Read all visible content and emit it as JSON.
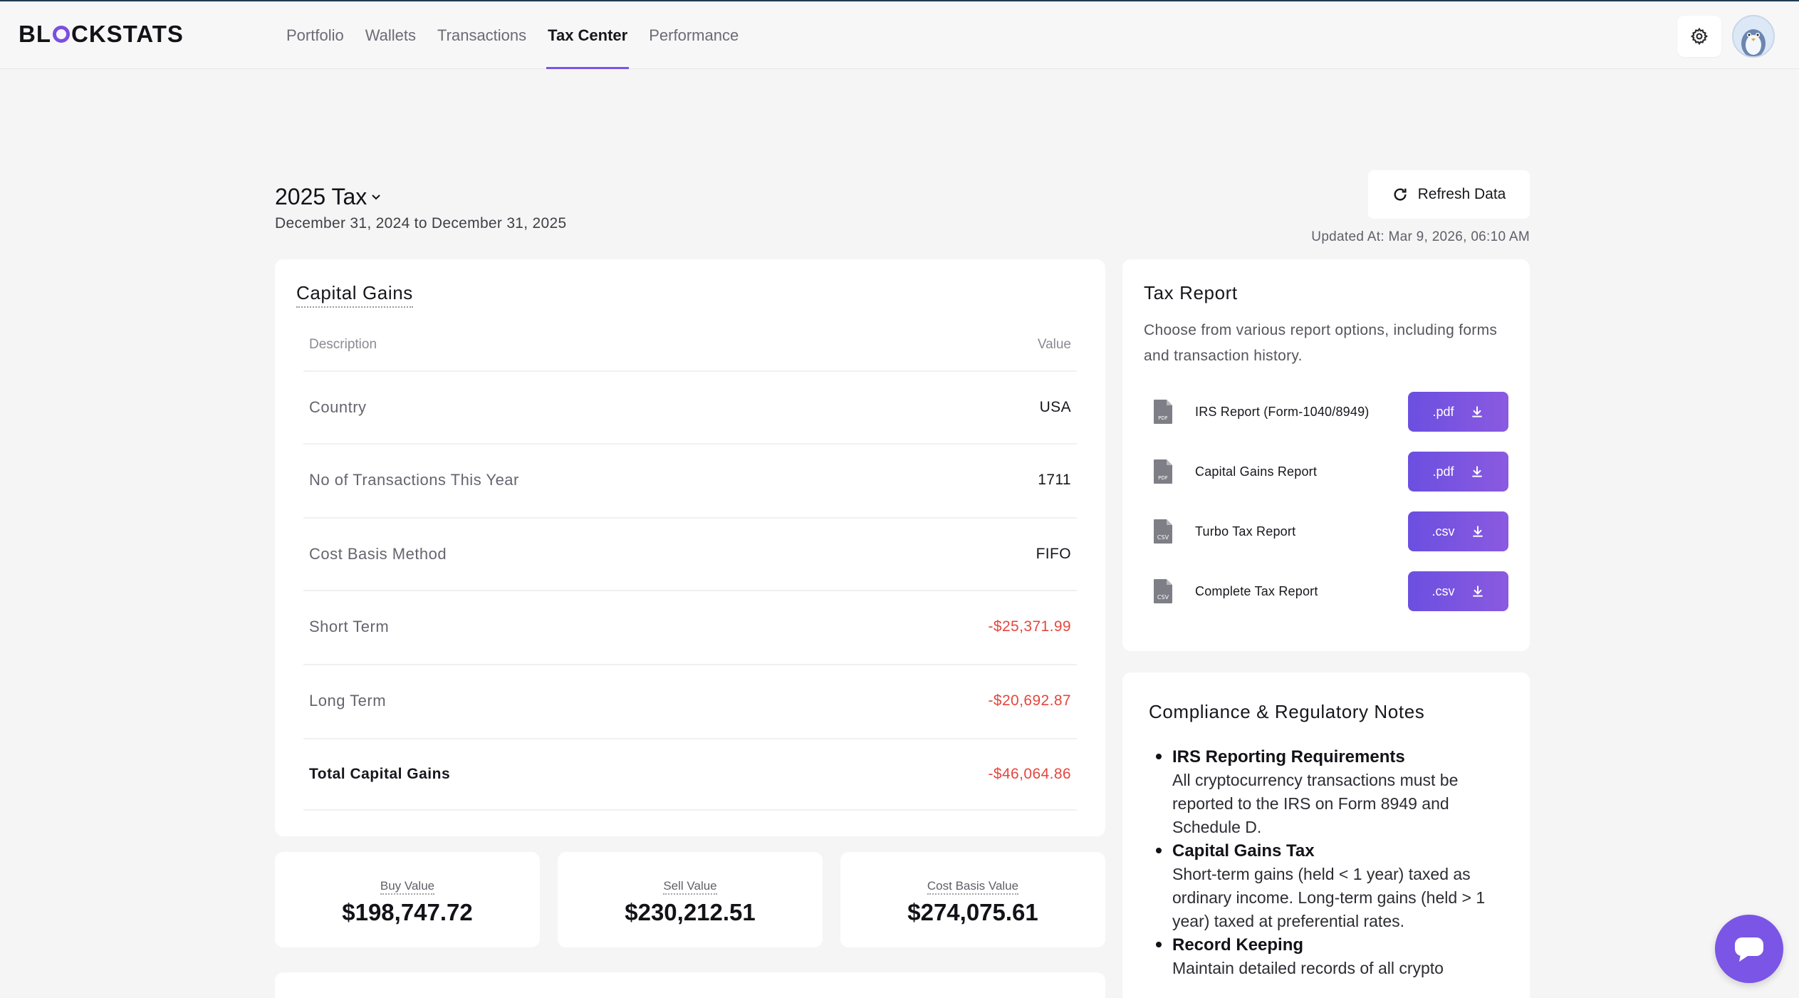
{
  "header": {
    "logo": "BLOCKSTATS",
    "nav": [
      {
        "label": "Portfolio",
        "active": false
      },
      {
        "label": "Wallets",
        "active": false
      },
      {
        "label": "Transactions",
        "active": false
      },
      {
        "label": "Tax Center",
        "active": true
      },
      {
        "label": "Performance",
        "active": false
      }
    ],
    "settings_icon": "gear-icon",
    "avatar_icon": "penguin-avatar"
  },
  "page": {
    "year_title": "2025 Tax",
    "date_range": "December 31, 2024 to December 31, 2025",
    "refresh_label": "Refresh Data",
    "updated_at": "Updated At: Mar 9, 2026, 06:10 AM"
  },
  "capital_gains": {
    "title": "Capital Gains",
    "col_description": "Description",
    "col_value": "Value",
    "rows": [
      {
        "label": "Country",
        "value": "USA"
      },
      {
        "label": "No of Transactions This Year",
        "value": "1711"
      },
      {
        "label": "Cost Basis Method",
        "value": "FIFO"
      },
      {
        "label": "Short Term",
        "value": "-$25,371.99"
      },
      {
        "label": "Long Term",
        "value": "-$20,692.87"
      },
      {
        "label": "Total Capital Gains",
        "value": "-$46,064.86"
      }
    ]
  },
  "stats": [
    {
      "label": "Buy Value",
      "value": "$198,747.72"
    },
    {
      "label": "Sell Value",
      "value": "$230,212.51"
    },
    {
      "label": "Cost Basis Value",
      "value": "$274,075.61"
    }
  ],
  "tax_report": {
    "title": "Tax Report",
    "description": "Choose from various report options, including forms and transaction history.",
    "reports": [
      {
        "name": "IRS Report (Form-1040/8949)",
        "format": ".pdf",
        "icon": "pdf-file-icon"
      },
      {
        "name": "Capital Gains Report",
        "format": ".pdf",
        "icon": "pdf-file-icon"
      },
      {
        "name": "Turbo Tax Report",
        "format": ".csv",
        "icon": "csv-file-icon"
      },
      {
        "name": "Complete Tax Report",
        "format": ".csv",
        "icon": "csv-file-icon"
      }
    ]
  },
  "compliance": {
    "title": "Compliance & Regulatory Notes",
    "items": [
      {
        "title": "IRS Reporting Requirements",
        "text": "All cryptocurrency transactions must be reported to the IRS on Form 8949 and Schedule D."
      },
      {
        "title": "Capital Gains Tax",
        "text": "Short-term gains (held < 1 year) taxed as ordinary income. Long-term gains (held > 1 year) taxed at preferential rates."
      },
      {
        "title": "Record Keeping",
        "text": "Maintain detailed records of all crypto"
      }
    ]
  },
  "colors": {
    "accent": "#7b55e6",
    "negative": "#e5463e"
  }
}
